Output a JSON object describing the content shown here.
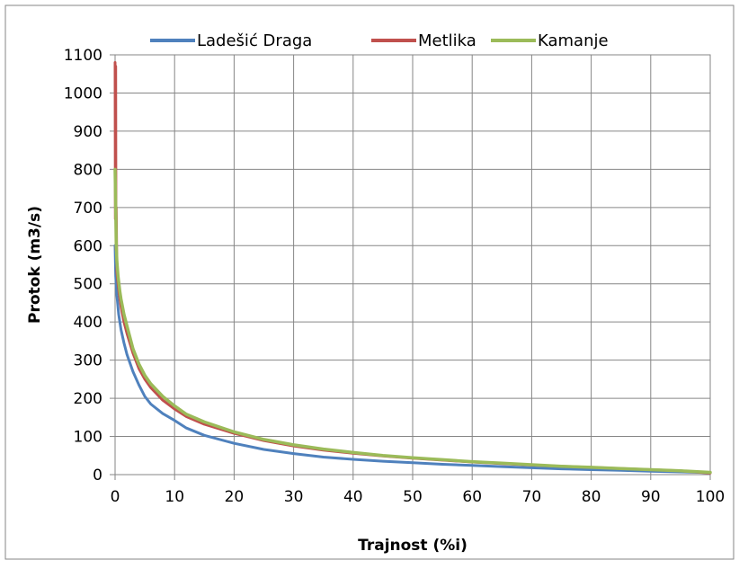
{
  "chart_data": {
    "type": "line",
    "title": "",
    "xlabel": "Trajnost (%i)",
    "ylabel": "Protok (m3/s)",
    "xlim": [
      0,
      100
    ],
    "ylim": [
      0,
      1100
    ],
    "xticks": [
      0,
      10,
      20,
      30,
      40,
      50,
      60,
      70,
      80,
      90,
      100
    ],
    "yticks": [
      0,
      100,
      200,
      300,
      400,
      500,
      600,
      700,
      800,
      900,
      1000,
      1100
    ],
    "grid": true,
    "legend_position": "top",
    "series": [
      {
        "name": "Ladešić Draga",
        "color": "#4f81bd",
        "x": [
          0,
          0.1,
          0.3,
          0.6,
          1,
          1.5,
          2,
          3,
          4,
          5,
          6,
          8,
          10,
          12,
          15,
          20,
          25,
          30,
          35,
          40,
          45,
          50,
          55,
          60,
          65,
          70,
          75,
          80,
          85,
          90,
          95,
          100
        ],
        "y": [
          600,
          520,
          470,
          420,
          380,
          345,
          315,
          270,
          235,
          205,
          185,
          160,
          142,
          122,
          103,
          82,
          66,
          55,
          46,
          40,
          35,
          31,
          27,
          24,
          21,
          18,
          15,
          13,
          11,
          9,
          7,
          5
        ]
      },
      {
        "name": "Metlika",
        "color": "#c0504d",
        "x": [
          0,
          0.05,
          0.1,
          0.15,
          0.2,
          0.3,
          0.5,
          0.8,
          1,
          1.5,
          2,
          3,
          4,
          5,
          6,
          8,
          10,
          12,
          15,
          20,
          25,
          30,
          35,
          40,
          45,
          50,
          55,
          60,
          65,
          70,
          75,
          80,
          85,
          90,
          95,
          100
        ],
        "y": [
          1080,
          670,
          1070,
          590,
          700,
          530,
          500,
          460,
          440,
          400,
          370,
          318,
          278,
          250,
          228,
          195,
          172,
          152,
          132,
          108,
          89,
          75,
          64,
          56,
          49,
          43,
          38,
          33,
          29,
          25,
          22,
          19,
          16,
          13,
          10,
          4
        ]
      },
      {
        "name": "Kamanje",
        "color": "#9bbb59",
        "x": [
          0,
          0.1,
          0.2,
          0.3,
          0.5,
          0.8,
          1,
          1.5,
          2,
          3,
          4,
          5,
          6,
          8,
          10,
          12,
          15,
          20,
          25,
          30,
          35,
          40,
          45,
          50,
          55,
          60,
          65,
          70,
          75,
          80,
          85,
          90,
          95,
          100
        ],
        "y": [
          800,
          700,
          600,
          560,
          520,
          480,
          460,
          420,
          390,
          330,
          290,
          260,
          238,
          205,
          180,
          158,
          138,
          112,
          92,
          78,
          67,
          58,
          50,
          44,
          39,
          34,
          30,
          26,
          22,
          19,
          16,
          13,
          10,
          6
        ]
      }
    ]
  }
}
